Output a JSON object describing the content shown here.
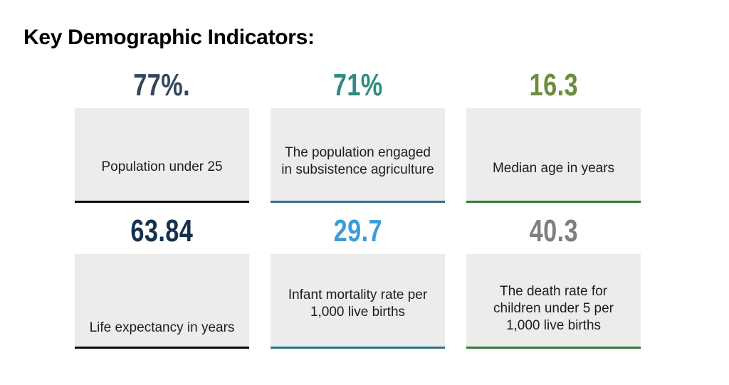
{
  "page": {
    "title": "Key Demographic Indicators:",
    "background_color": "#FFFFFF"
  },
  "card_background": "#ECECEB",
  "cards": [
    {
      "value": "77%.",
      "value_color": "#33465C",
      "label": "Population under 25",
      "accent_color": "#0B0B0B"
    },
    {
      "value": "71%",
      "value_color": "#2F8B82",
      "label": "The population engaged in subsistence agriculture",
      "accent_color": "#2E7191"
    },
    {
      "value": "16.3",
      "value_color": "#6C8D3B",
      "label": "Median age in years",
      "accent_color": "#2E7D35"
    },
    {
      "value": "63.84",
      "value_color": "#16304F",
      "label": "Life expectancy in years",
      "accent_color": "#0B0B0B"
    },
    {
      "value": "29.7",
      "value_color": "#3C9BDB",
      "label": "Infant mortality rate per 1,000 live births",
      "accent_color": "#2E7191"
    },
    {
      "value": "40.3",
      "value_color": "#7F7F7F",
      "label": "The death rate for children under 5 per 1,000 live births",
      "accent_color": "#2E7D35"
    }
  ]
}
